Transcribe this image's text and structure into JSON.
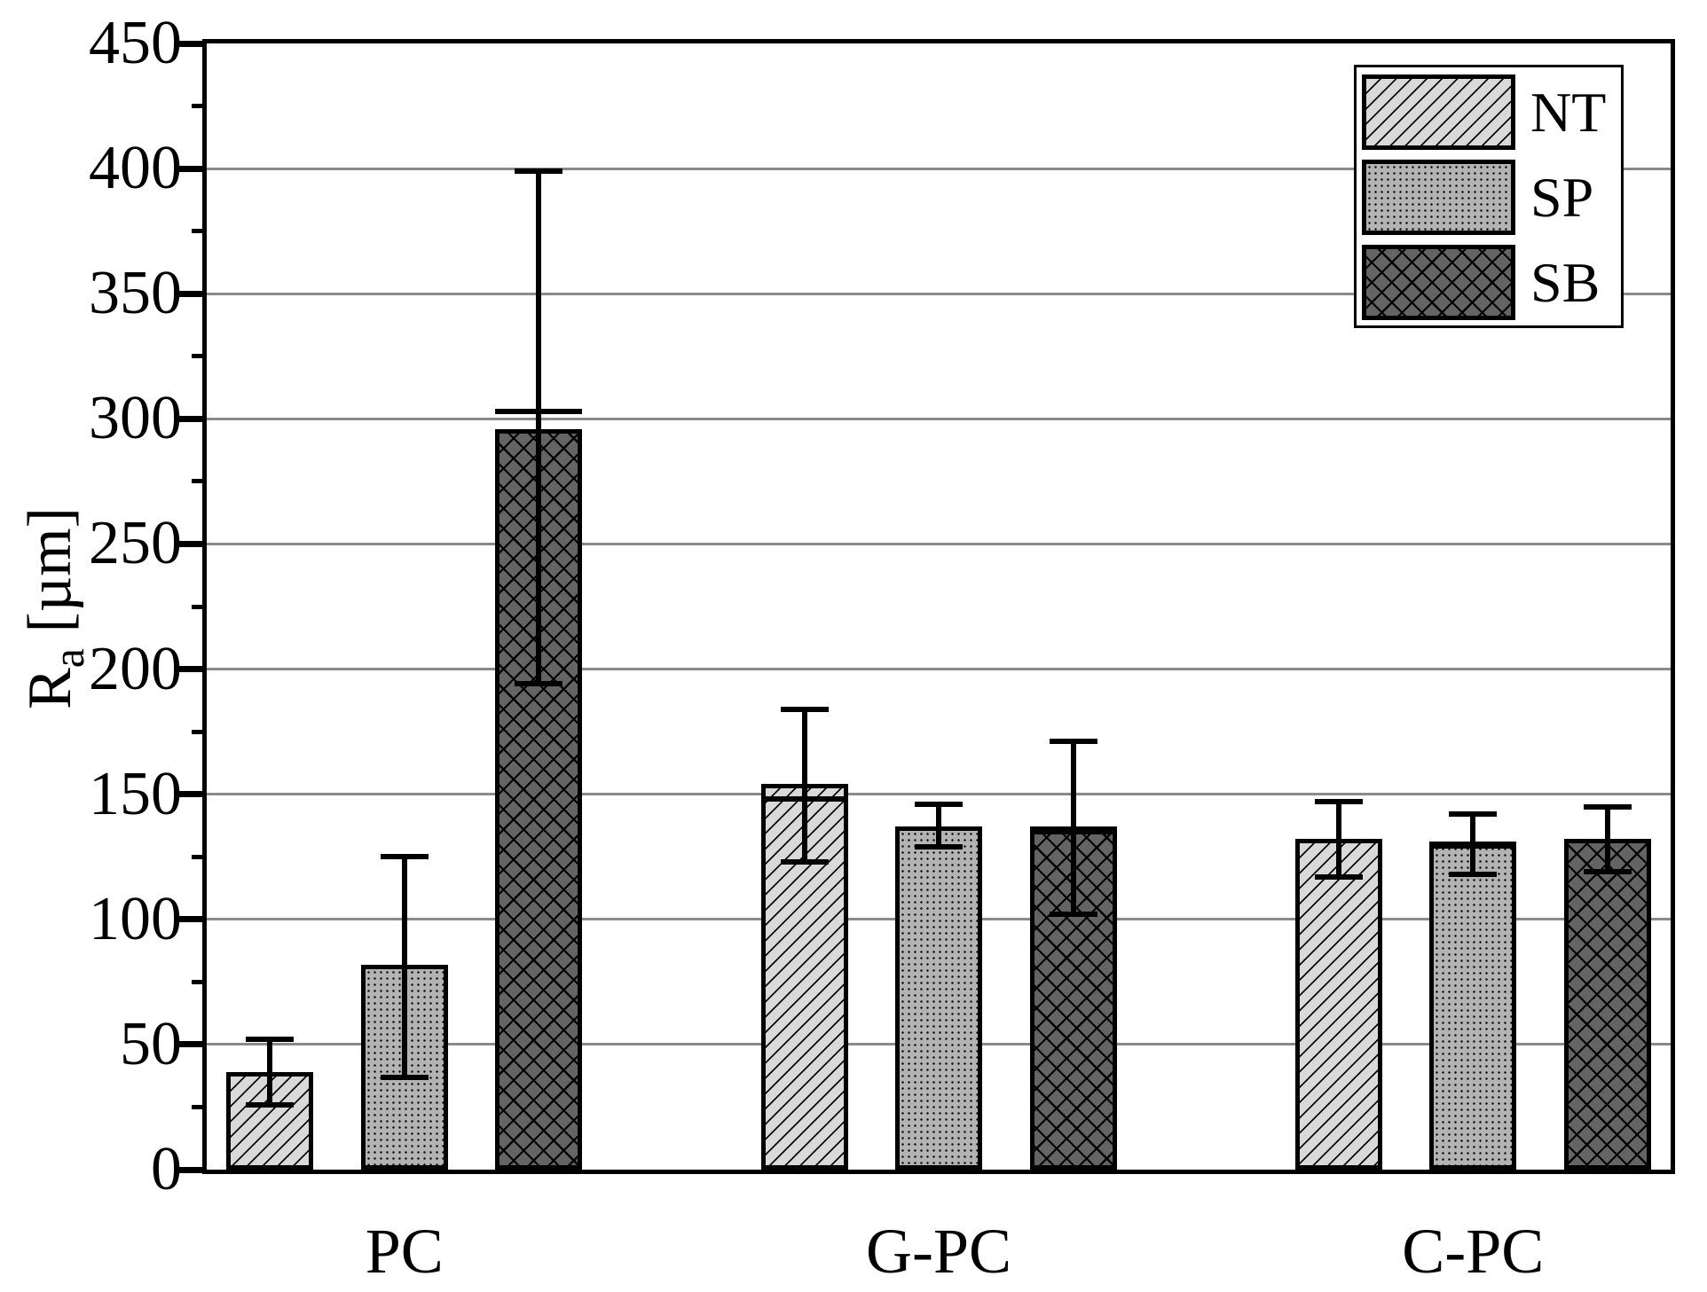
{
  "figure": {
    "background": "#ffffff",
    "axis_color": "#000000",
    "grid_color": "#8a8a8a"
  },
  "chart_data": {
    "type": "bar",
    "title": "",
    "xlabel": "",
    "ylabel": {
      "prefix": "R",
      "sub": "a",
      "suffix": " [µm]"
    },
    "ylim": [
      0,
      450
    ],
    "ytick_step": 50,
    "yminor_step": 25,
    "ytick_labels": [
      "0",
      "50",
      "100",
      "150",
      "200",
      "250",
      "300",
      "350",
      "400",
      "450"
    ],
    "grid": "horizontal-major",
    "legend_position": "top-right",
    "categories": [
      "PC",
      "G-PC",
      "C-PC"
    ],
    "series": [
      {
        "name": "NT",
        "pattern": "diagonal-hatch",
        "fill": "#d9d9d9",
        "values": [
          39,
          154,
          132
        ],
        "err_low": [
          26,
          123,
          117
        ],
        "err_high": [
          52,
          184,
          147
        ],
        "markers": [
          null,
          148,
          null
        ]
      },
      {
        "name": "SP",
        "pattern": "dot-grid",
        "fill": "#b3b3b3",
        "values": [
          82,
          137,
          131
        ],
        "err_low": [
          37,
          129,
          118
        ],
        "err_high": [
          125,
          146,
          142
        ],
        "markers": [
          null,
          null,
          129.5
        ]
      },
      {
        "name": "SB",
        "pattern": "cross-hatch",
        "fill": "#646464",
        "values": [
          296,
          137,
          132
        ],
        "err_low": [
          194,
          102,
          119
        ],
        "err_high": [
          399,
          171,
          145
        ],
        "markers": [
          303,
          135,
          null
        ]
      }
    ]
  }
}
